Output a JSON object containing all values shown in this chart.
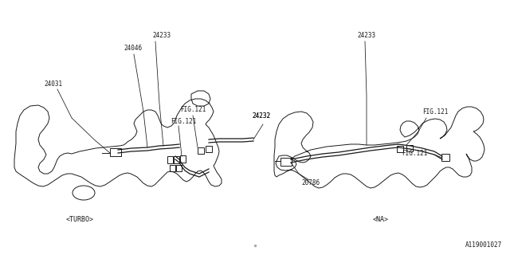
{
  "bg_color": "#ffffff",
  "line_color": "#1a1a1a",
  "diagram_id": "A119001027",
  "turbo_label": "<TURBO>",
  "na_label": "<NA>"
}
